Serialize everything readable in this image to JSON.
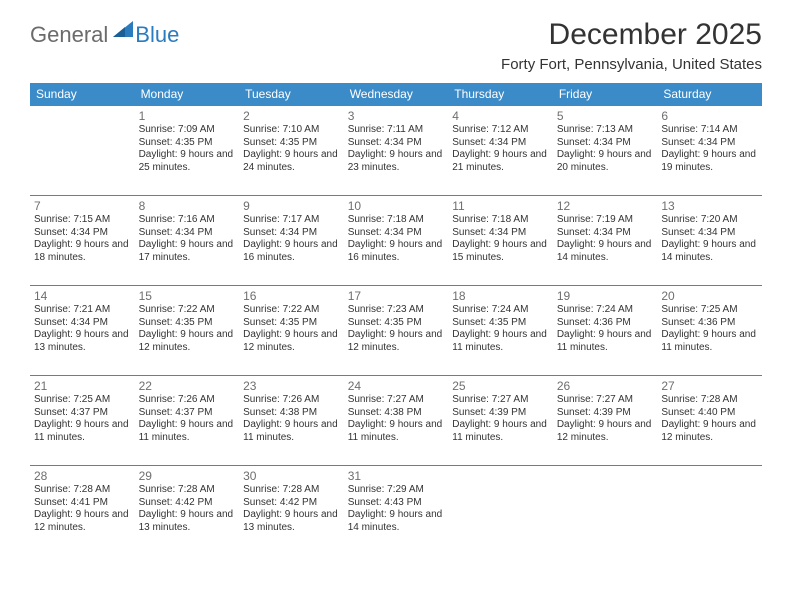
{
  "logo": {
    "general": "General",
    "blue": "Blue"
  },
  "title": "December 2025",
  "location": "Forty Fort, Pennsylvania, United States",
  "colors": {
    "header_bg": "#3b8bc9",
    "header_fg": "#ffffff",
    "cell_border": "#3b8bc9",
    "text": "#333333",
    "daynum": "#6e6e6e",
    "logo_gray": "#6b6b6b",
    "logo_blue": "#2b7bbf"
  },
  "weekdays": [
    "Sunday",
    "Monday",
    "Tuesday",
    "Wednesday",
    "Thursday",
    "Friday",
    "Saturday"
  ],
  "weeks": [
    [
      {
        "n": "",
        "sr": "",
        "ss": "",
        "dl": ""
      },
      {
        "n": "1",
        "sr": "7:09 AM",
        "ss": "4:35 PM",
        "dl": "9 hours and 25 minutes."
      },
      {
        "n": "2",
        "sr": "7:10 AM",
        "ss": "4:35 PM",
        "dl": "9 hours and 24 minutes."
      },
      {
        "n": "3",
        "sr": "7:11 AM",
        "ss": "4:34 PM",
        "dl": "9 hours and 23 minutes."
      },
      {
        "n": "4",
        "sr": "7:12 AM",
        "ss": "4:34 PM",
        "dl": "9 hours and 21 minutes."
      },
      {
        "n": "5",
        "sr": "7:13 AM",
        "ss": "4:34 PM",
        "dl": "9 hours and 20 minutes."
      },
      {
        "n": "6",
        "sr": "7:14 AM",
        "ss": "4:34 PM",
        "dl": "9 hours and 19 minutes."
      }
    ],
    [
      {
        "n": "7",
        "sr": "7:15 AM",
        "ss": "4:34 PM",
        "dl": "9 hours and 18 minutes."
      },
      {
        "n": "8",
        "sr": "7:16 AM",
        "ss": "4:34 PM",
        "dl": "9 hours and 17 minutes."
      },
      {
        "n": "9",
        "sr": "7:17 AM",
        "ss": "4:34 PM",
        "dl": "9 hours and 16 minutes."
      },
      {
        "n": "10",
        "sr": "7:18 AM",
        "ss": "4:34 PM",
        "dl": "9 hours and 16 minutes."
      },
      {
        "n": "11",
        "sr": "7:18 AM",
        "ss": "4:34 PM",
        "dl": "9 hours and 15 minutes."
      },
      {
        "n": "12",
        "sr": "7:19 AM",
        "ss": "4:34 PM",
        "dl": "9 hours and 14 minutes."
      },
      {
        "n": "13",
        "sr": "7:20 AM",
        "ss": "4:34 PM",
        "dl": "9 hours and 14 minutes."
      }
    ],
    [
      {
        "n": "14",
        "sr": "7:21 AM",
        "ss": "4:34 PM",
        "dl": "9 hours and 13 minutes."
      },
      {
        "n": "15",
        "sr": "7:22 AM",
        "ss": "4:35 PM",
        "dl": "9 hours and 12 minutes."
      },
      {
        "n": "16",
        "sr": "7:22 AM",
        "ss": "4:35 PM",
        "dl": "9 hours and 12 minutes."
      },
      {
        "n": "17",
        "sr": "7:23 AM",
        "ss": "4:35 PM",
        "dl": "9 hours and 12 minutes."
      },
      {
        "n": "18",
        "sr": "7:24 AM",
        "ss": "4:35 PM",
        "dl": "9 hours and 11 minutes."
      },
      {
        "n": "19",
        "sr": "7:24 AM",
        "ss": "4:36 PM",
        "dl": "9 hours and 11 minutes."
      },
      {
        "n": "20",
        "sr": "7:25 AM",
        "ss": "4:36 PM",
        "dl": "9 hours and 11 minutes."
      }
    ],
    [
      {
        "n": "21",
        "sr": "7:25 AM",
        "ss": "4:37 PM",
        "dl": "9 hours and 11 minutes."
      },
      {
        "n": "22",
        "sr": "7:26 AM",
        "ss": "4:37 PM",
        "dl": "9 hours and 11 minutes."
      },
      {
        "n": "23",
        "sr": "7:26 AM",
        "ss": "4:38 PM",
        "dl": "9 hours and 11 minutes."
      },
      {
        "n": "24",
        "sr": "7:27 AM",
        "ss": "4:38 PM",
        "dl": "9 hours and 11 minutes."
      },
      {
        "n": "25",
        "sr": "7:27 AM",
        "ss": "4:39 PM",
        "dl": "9 hours and 11 minutes."
      },
      {
        "n": "26",
        "sr": "7:27 AM",
        "ss": "4:39 PM",
        "dl": "9 hours and 12 minutes."
      },
      {
        "n": "27",
        "sr": "7:28 AM",
        "ss": "4:40 PM",
        "dl": "9 hours and 12 minutes."
      }
    ],
    [
      {
        "n": "28",
        "sr": "7:28 AM",
        "ss": "4:41 PM",
        "dl": "9 hours and 12 minutes."
      },
      {
        "n": "29",
        "sr": "7:28 AM",
        "ss": "4:42 PM",
        "dl": "9 hours and 13 minutes."
      },
      {
        "n": "30",
        "sr": "7:28 AM",
        "ss": "4:42 PM",
        "dl": "9 hours and 13 minutes."
      },
      {
        "n": "31",
        "sr": "7:29 AM",
        "ss": "4:43 PM",
        "dl": "9 hours and 14 minutes."
      },
      {
        "n": "",
        "sr": "",
        "ss": "",
        "dl": ""
      },
      {
        "n": "",
        "sr": "",
        "ss": "",
        "dl": ""
      },
      {
        "n": "",
        "sr": "",
        "ss": "",
        "dl": ""
      }
    ]
  ],
  "labels": {
    "sunrise": "Sunrise: ",
    "sunset": "Sunset: ",
    "daylight": "Daylight: "
  }
}
